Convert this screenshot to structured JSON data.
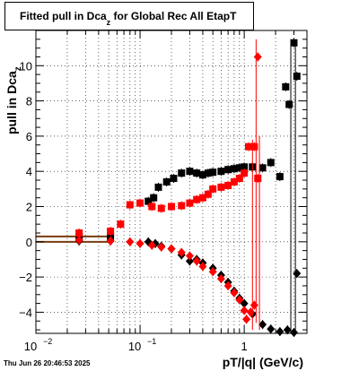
{
  "chart_data": {
    "type": "scatter",
    "title": "Fitted pull in Dca",
    "title_subscript": "z",
    "title_suffix": " for Global Rec All EtapT",
    "xlabel": "pT/|q| (GeV/c)",
    "ylabel": "pull in Dca",
    "ylabel_subscript": "z",
    "footer": "Thu Jun 26 20:46:53 2025",
    "x_scale": "log",
    "xlim": [
      0.01,
      4
    ],
    "ylim": [
      -5.2,
      12
    ],
    "x_ticks": [
      {
        "value": 0.01,
        "base": "10",
        "exp": "−2"
      },
      {
        "value": 0.1,
        "base": "10",
        "exp": "−1"
      },
      {
        "value": 1,
        "base": "1",
        "exp": ""
      }
    ],
    "y_ticks": [
      "−4",
      "−2",
      "0",
      "2",
      "4",
      "6",
      "8",
      "10"
    ],
    "y_tick_values": [
      -4,
      -2,
      0,
      2,
      4,
      6,
      8,
      10
    ],
    "grid": true,
    "series": [
      {
        "color": "#000000",
        "marker": "square",
        "values": [
          [
            0.026,
            0.3
          ],
          [
            0.052,
            0.3
          ],
          [
            0.12,
            2.3
          ],
          [
            0.135,
            2.5
          ],
          [
            0.15,
            3.1
          ],
          [
            0.18,
            3.4
          ],
          [
            0.21,
            3.6
          ],
          [
            0.25,
            3.9
          ],
          [
            0.3,
            4.0
          ],
          [
            0.35,
            3.9
          ],
          [
            0.4,
            3.8
          ],
          [
            0.45,
            3.9
          ],
          [
            0.5,
            3.95
          ],
          [
            0.6,
            4.0
          ],
          [
            0.7,
            4.1
          ],
          [
            0.8,
            4.15
          ],
          [
            0.9,
            4.2
          ],
          [
            1.0,
            4.25
          ],
          [
            1.2,
            4.25
          ],
          [
            1.5,
            4.2
          ],
          [
            1.8,
            4.5
          ],
          [
            2.2,
            3.7
          ],
          [
            2.5,
            8.8
          ],
          [
            2.7,
            7.8
          ],
          [
            3.0,
            11.3
          ],
          [
            3.2,
            9.4
          ]
        ]
      },
      {
        "color": "#000000",
        "marker": "diamond",
        "values": [
          [
            0.026,
            0.05
          ],
          [
            0.052,
            0.05
          ],
          [
            0.12,
            0.0
          ],
          [
            0.14,
            -0.1
          ],
          [
            0.16,
            -0.25
          ],
          [
            0.2,
            -0.4
          ],
          [
            0.25,
            -0.75
          ],
          [
            0.3,
            -1.1
          ],
          [
            0.35,
            -1.0
          ],
          [
            0.4,
            -1.2
          ],
          [
            0.5,
            -1.5
          ],
          [
            0.6,
            -1.9
          ],
          [
            0.7,
            -2.3
          ],
          [
            0.8,
            -2.8
          ],
          [
            0.9,
            -3.2
          ],
          [
            1.0,
            -3.5
          ],
          [
            1.2,
            -4.1
          ],
          [
            1.5,
            -4.7
          ],
          [
            1.8,
            -4.95
          ],
          [
            2.2,
            -5.1
          ],
          [
            2.6,
            -5.0
          ],
          [
            3.0,
            -5.15
          ],
          [
            3.2,
            -1.8
          ]
        ]
      },
      {
        "color": "#ff0000",
        "marker": "square",
        "values": [
          [
            0.026,
            0.5
          ],
          [
            0.052,
            0.6
          ],
          [
            0.065,
            1.0
          ],
          [
            0.08,
            2.1
          ],
          [
            0.1,
            2.2
          ],
          [
            0.13,
            2.0
          ],
          [
            0.16,
            1.9
          ],
          [
            0.2,
            2.0
          ],
          [
            0.25,
            2.05
          ],
          [
            0.3,
            2.2
          ],
          [
            0.35,
            2.4
          ],
          [
            0.4,
            2.5
          ],
          [
            0.45,
            2.7
          ],
          [
            0.5,
            3.0
          ],
          [
            0.6,
            3.1
          ],
          [
            0.7,
            3.2
          ],
          [
            0.8,
            3.4
          ],
          [
            0.9,
            3.6
          ],
          [
            1.0,
            3.9
          ],
          [
            1.1,
            5.4
          ],
          [
            1.25,
            5.4
          ],
          [
            1.35,
            3.6
          ]
        ]
      },
      {
        "color": "#ff0000",
        "marker": "diamond",
        "values": [
          [
            0.026,
            0.1
          ],
          [
            0.052,
            0.05
          ],
          [
            0.08,
            0.0
          ],
          [
            0.1,
            -0.1
          ],
          [
            0.13,
            -0.2
          ],
          [
            0.16,
            -0.3
          ],
          [
            0.2,
            -0.4
          ],
          [
            0.25,
            -0.6
          ],
          [
            0.3,
            -0.8
          ],
          [
            0.35,
            -1.1
          ],
          [
            0.4,
            -1.4
          ],
          [
            0.5,
            -1.7
          ],
          [
            0.6,
            -2.1
          ],
          [
            0.7,
            -2.5
          ],
          [
            0.8,
            -2.9
          ],
          [
            0.9,
            -3.3
          ],
          [
            1.0,
            -3.9
          ],
          [
            1.05,
            -4.4
          ],
          [
            1.15,
            -4.0
          ],
          [
            1.25,
            -3.6
          ],
          [
            1.35,
            10.5
          ]
        ]
      }
    ]
  }
}
